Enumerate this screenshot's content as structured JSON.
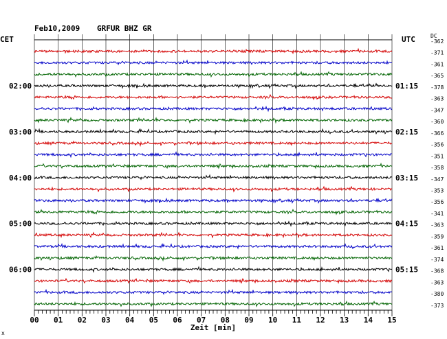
{
  "header": {
    "date": "Feb10,2009",
    "station": "GRFUR BHZ GR",
    "left_tz": "CET",
    "right_tz": "UTC",
    "dc_label": "DC",
    "bottom_mark": "x"
  },
  "chart_data": {
    "type": "line",
    "title": "Feb10,2009   GRFUR BHZ GR",
    "xlabel": "Zeit [min]",
    "xlim": [
      0,
      15
    ],
    "x_ticks": [
      "00",
      "01",
      "02",
      "03",
      "04",
      "05",
      "06",
      "07",
      "08",
      "09",
      "10",
      "11",
      "12",
      "13",
      "14",
      "15"
    ],
    "trace_colors": [
      "#000000",
      "#d40000",
      "#0000c8",
      "#006400"
    ],
    "left_hour_labels": [
      {
        "trace": 4,
        "label": "02:00"
      },
      {
        "trace": 8,
        "label": "03:00"
      },
      {
        "trace": 12,
        "label": "04:00"
      },
      {
        "trace": 16,
        "label": "05:00"
      },
      {
        "trace": 20,
        "label": "06:00"
      }
    ],
    "right_hour_labels": [
      {
        "trace": 4,
        "label": "01:15"
      },
      {
        "trace": 8,
        "label": "02:15"
      },
      {
        "trace": 12,
        "label": "03:15"
      },
      {
        "trace": 16,
        "label": "04:15"
      },
      {
        "trace": 20,
        "label": "05:15"
      }
    ],
    "dc_offsets": [
      -362,
      -371,
      -361,
      -365,
      -378,
      -363,
      -347,
      -360,
      -366,
      -356,
      -351,
      -358,
      -347,
      -353,
      -356,
      -341,
      -363,
      -359,
      -361,
      -374,
      -368,
      -363,
      -380,
      -373
    ]
  }
}
